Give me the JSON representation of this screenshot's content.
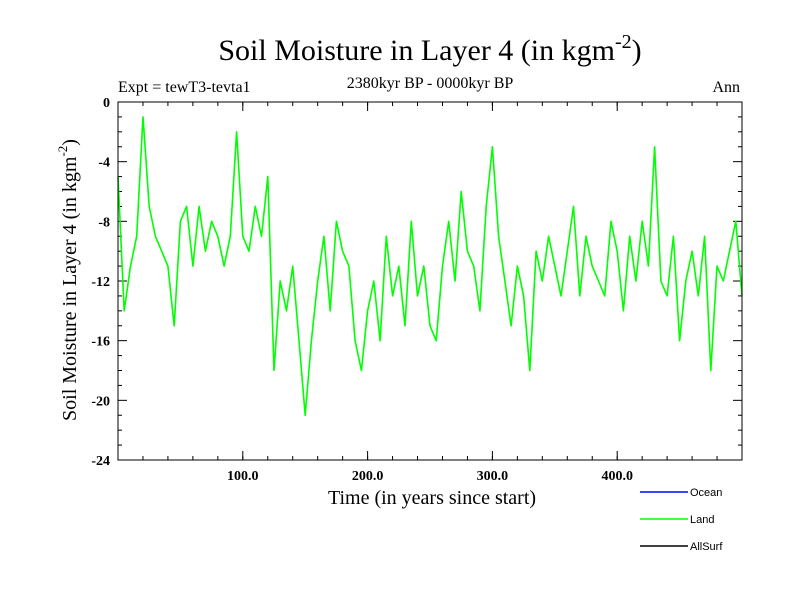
{
  "chart_data": {
    "type": "line",
    "title": "Soil Moisture in Layer 4 (in kgm",
    "title_superscript": "-2",
    "title_close": ")",
    "subtitle": "2380kyr BP - 0000kyr BP",
    "expt_label": "Expt = tewT3-tevta1",
    "period_label": "Ann",
    "xlabel": "Time (in years since start)",
    "ylabel": "Soil Moisture in Layer 4 (in kgm",
    "ylabel_superscript": "-2",
    "ylabel_close": ")",
    "xlim": [
      0,
      500
    ],
    "ylim": [
      -24,
      0
    ],
    "x_ticks": [
      100,
      200,
      300,
      400
    ],
    "x_tick_labels": [
      "100.0",
      "200.0",
      "300.0",
      "400.0"
    ],
    "y_ticks": [
      0,
      -4,
      -8,
      -12,
      -16,
      -20,
      -24
    ],
    "y_tick_labels": [
      "0",
      "-4",
      "-8",
      "-12",
      "-16",
      "-20",
      "-24"
    ],
    "legend": [
      {
        "name": "Ocean",
        "color": "#0000ff"
      },
      {
        "name": "Land",
        "color": "#00ff00"
      },
      {
        "name": "AllSurf",
        "color": "#000000"
      }
    ],
    "series": [
      {
        "name": "Land",
        "color": "#00ff00",
        "x": [
          0,
          5,
          10,
          15,
          20,
          25,
          30,
          35,
          40,
          45,
          50,
          55,
          60,
          65,
          70,
          75,
          80,
          85,
          90,
          95,
          100,
          105,
          110,
          115,
          120,
          125,
          130,
          135,
          140,
          145,
          150,
          155,
          160,
          165,
          170,
          175,
          180,
          185,
          190,
          195,
          200,
          205,
          210,
          215,
          220,
          225,
          230,
          235,
          240,
          245,
          250,
          255,
          260,
          265,
          270,
          275,
          280,
          285,
          290,
          295,
          300,
          305,
          310,
          315,
          320,
          325,
          330,
          335,
          340,
          345,
          350,
          355,
          360,
          365,
          370,
          375,
          380,
          385,
          390,
          395,
          400,
          405,
          410,
          415,
          420,
          425,
          430,
          435,
          440,
          445,
          450,
          455,
          460,
          465,
          470,
          475,
          480,
          485,
          490,
          495,
          500
        ],
        "values": [
          -5,
          -14,
          -11,
          -9,
          -1,
          -7,
          -9,
          -10,
          -11,
          -15,
          -8,
          -7,
          -11,
          -7,
          -10,
          -8,
          -9,
          -11,
          -9,
          -2,
          -9,
          -10,
          -7,
          -9,
          -5,
          -18,
          -12,
          -14,
          -11,
          -16,
          -21,
          -16,
          -12,
          -9,
          -14,
          -8,
          -10,
          -11,
          -16,
          -18,
          -14,
          -12,
          -16,
          -9,
          -13,
          -11,
          -15,
          -8,
          -13,
          -11,
          -15,
          -16,
          -11,
          -8,
          -12,
          -6,
          -10,
          -11,
          -14,
          -7,
          -3,
          -9,
          -12,
          -15,
          -11,
          -13,
          -18,
          -10,
          -12,
          -9,
          -11,
          -13,
          -10,
          -7,
          -13,
          -9,
          -11,
          -12,
          -13,
          -8,
          -10,
          -14,
          -9,
          -12,
          -8,
          -11,
          -3,
          -12,
          -13,
          -9,
          -16,
          -12,
          -10,
          -13,
          -9,
          -18,
          -11,
          -12,
          -10,
          -8,
          -13
        ]
      }
    ]
  }
}
